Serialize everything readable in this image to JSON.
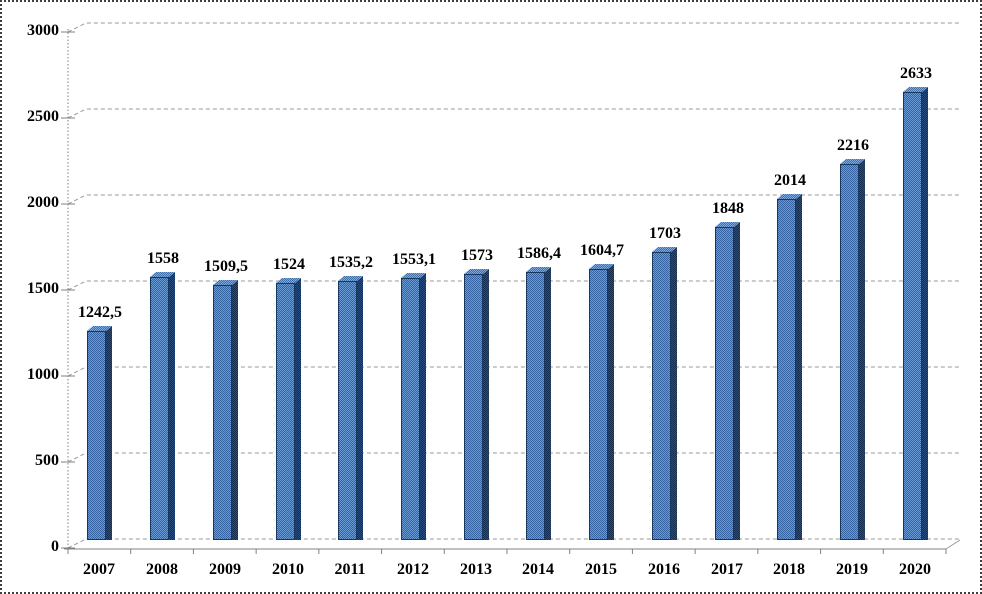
{
  "chart_data": {
    "type": "bar",
    "style": "3d-column",
    "title": "",
    "xlabel": "",
    "ylabel": "",
    "categories": [
      "2007",
      "2008",
      "2009",
      "2010",
      "2011",
      "2012",
      "2013",
      "2014",
      "2015",
      "2016",
      "2017",
      "2018",
      "2019",
      "2020"
    ],
    "values": [
      1242.5,
      1558,
      1509.5,
      1524,
      1535.2,
      1553.1,
      1573,
      1586.4,
      1604.7,
      1703,
      1848,
      2014,
      2216,
      2633
    ],
    "value_labels": [
      "1242,5",
      "1558",
      "1509,5",
      "1524",
      "1535,2",
      "1553,1",
      "1573",
      "1586,4",
      "1604,7",
      "1703",
      "1848",
      "2014",
      "2216",
      "2633"
    ],
    "ylim": [
      0,
      3000
    ],
    "yticks": [
      0,
      500,
      1000,
      1500,
      2000,
      2500,
      3000
    ],
    "ytick_labels": [
      "0",
      "500",
      "1000",
      "1500",
      "2000",
      "2500",
      "3000"
    ],
    "grid": true,
    "legend": null,
    "decimal_separator": ",",
    "colors": {
      "bar_front_light": "#6b9bd4",
      "bar_front_dark": "#3462a0",
      "bar_top_light": "#7fa9dc",
      "bar_top_dark": "#4170a9",
      "bar_side_light": "#284d7e",
      "bar_side_dark": "#142d50",
      "bar_outline": "#17375e",
      "gridline": "#999999",
      "axis": "#808080",
      "text": "#000000",
      "background": "#ffffff",
      "outer_border": "#3f3f3f"
    }
  }
}
